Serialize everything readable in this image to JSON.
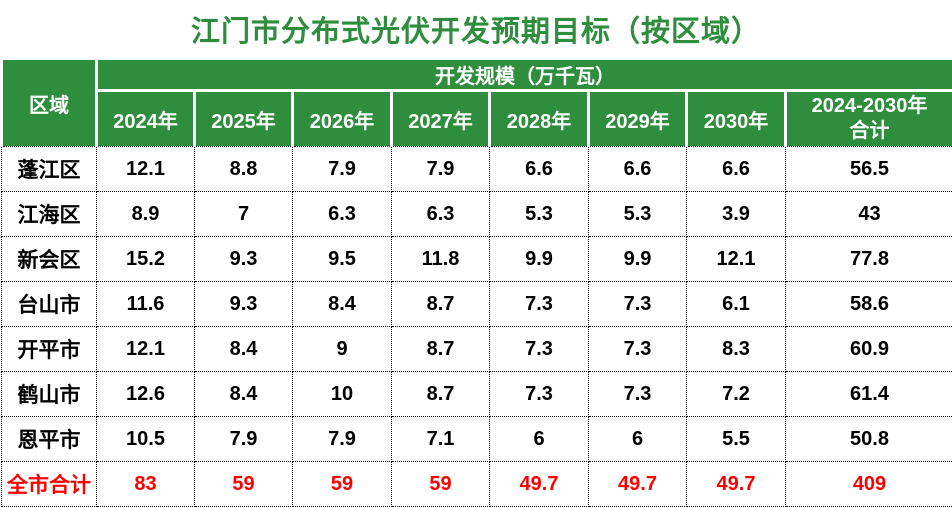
{
  "chart_data": {
    "type": "table",
    "title": "江门市分布式光伏开发预期目标（按区域）",
    "corner_header": "区域",
    "group_header": "开发规模（万千瓦）",
    "year_headers": [
      "2024年",
      "2025年",
      "2026年",
      "2027年",
      "2028年",
      "2029年",
      "2030年"
    ],
    "total_header": "2024-2030年\n合计",
    "rows": [
      {
        "region": "蓬江区",
        "values": [
          "12.1",
          "8.8",
          "7.9",
          "7.9",
          "6.6",
          "6.6",
          "6.6",
          "56.5"
        ]
      },
      {
        "region": "江海区",
        "values": [
          "8.9",
          "7",
          "6.3",
          "6.3",
          "5.3",
          "5.3",
          "3.9",
          "43"
        ]
      },
      {
        "region": "新会区",
        "values": [
          "15.2",
          "9.3",
          "9.5",
          "11.8",
          "9.9",
          "9.9",
          "12.1",
          "77.8"
        ]
      },
      {
        "region": "台山市",
        "values": [
          "11.6",
          "9.3",
          "8.4",
          "8.7",
          "7.3",
          "7.3",
          "6.1",
          "58.6"
        ]
      },
      {
        "region": "开平市",
        "values": [
          "12.1",
          "8.4",
          "9",
          "8.7",
          "7.3",
          "7.3",
          "8.3",
          "60.9"
        ]
      },
      {
        "region": "鹤山市",
        "values": [
          "12.6",
          "8.4",
          "10",
          "8.7",
          "7.3",
          "7.3",
          "7.2",
          "61.4"
        ]
      },
      {
        "region": "恩平市",
        "values": [
          "10.5",
          "7.9",
          "7.9",
          "7.1",
          "6",
          "6",
          "5.5",
          "50.8"
        ]
      }
    ],
    "total_row": {
      "region": "全市合计",
      "values": [
        "83",
        "59",
        "59",
        "59",
        "49.7",
        "49.7",
        "49.7",
        "409"
      ]
    }
  },
  "colors": {
    "header_green": "#2e8e3d",
    "total_red": "#ff0000"
  }
}
